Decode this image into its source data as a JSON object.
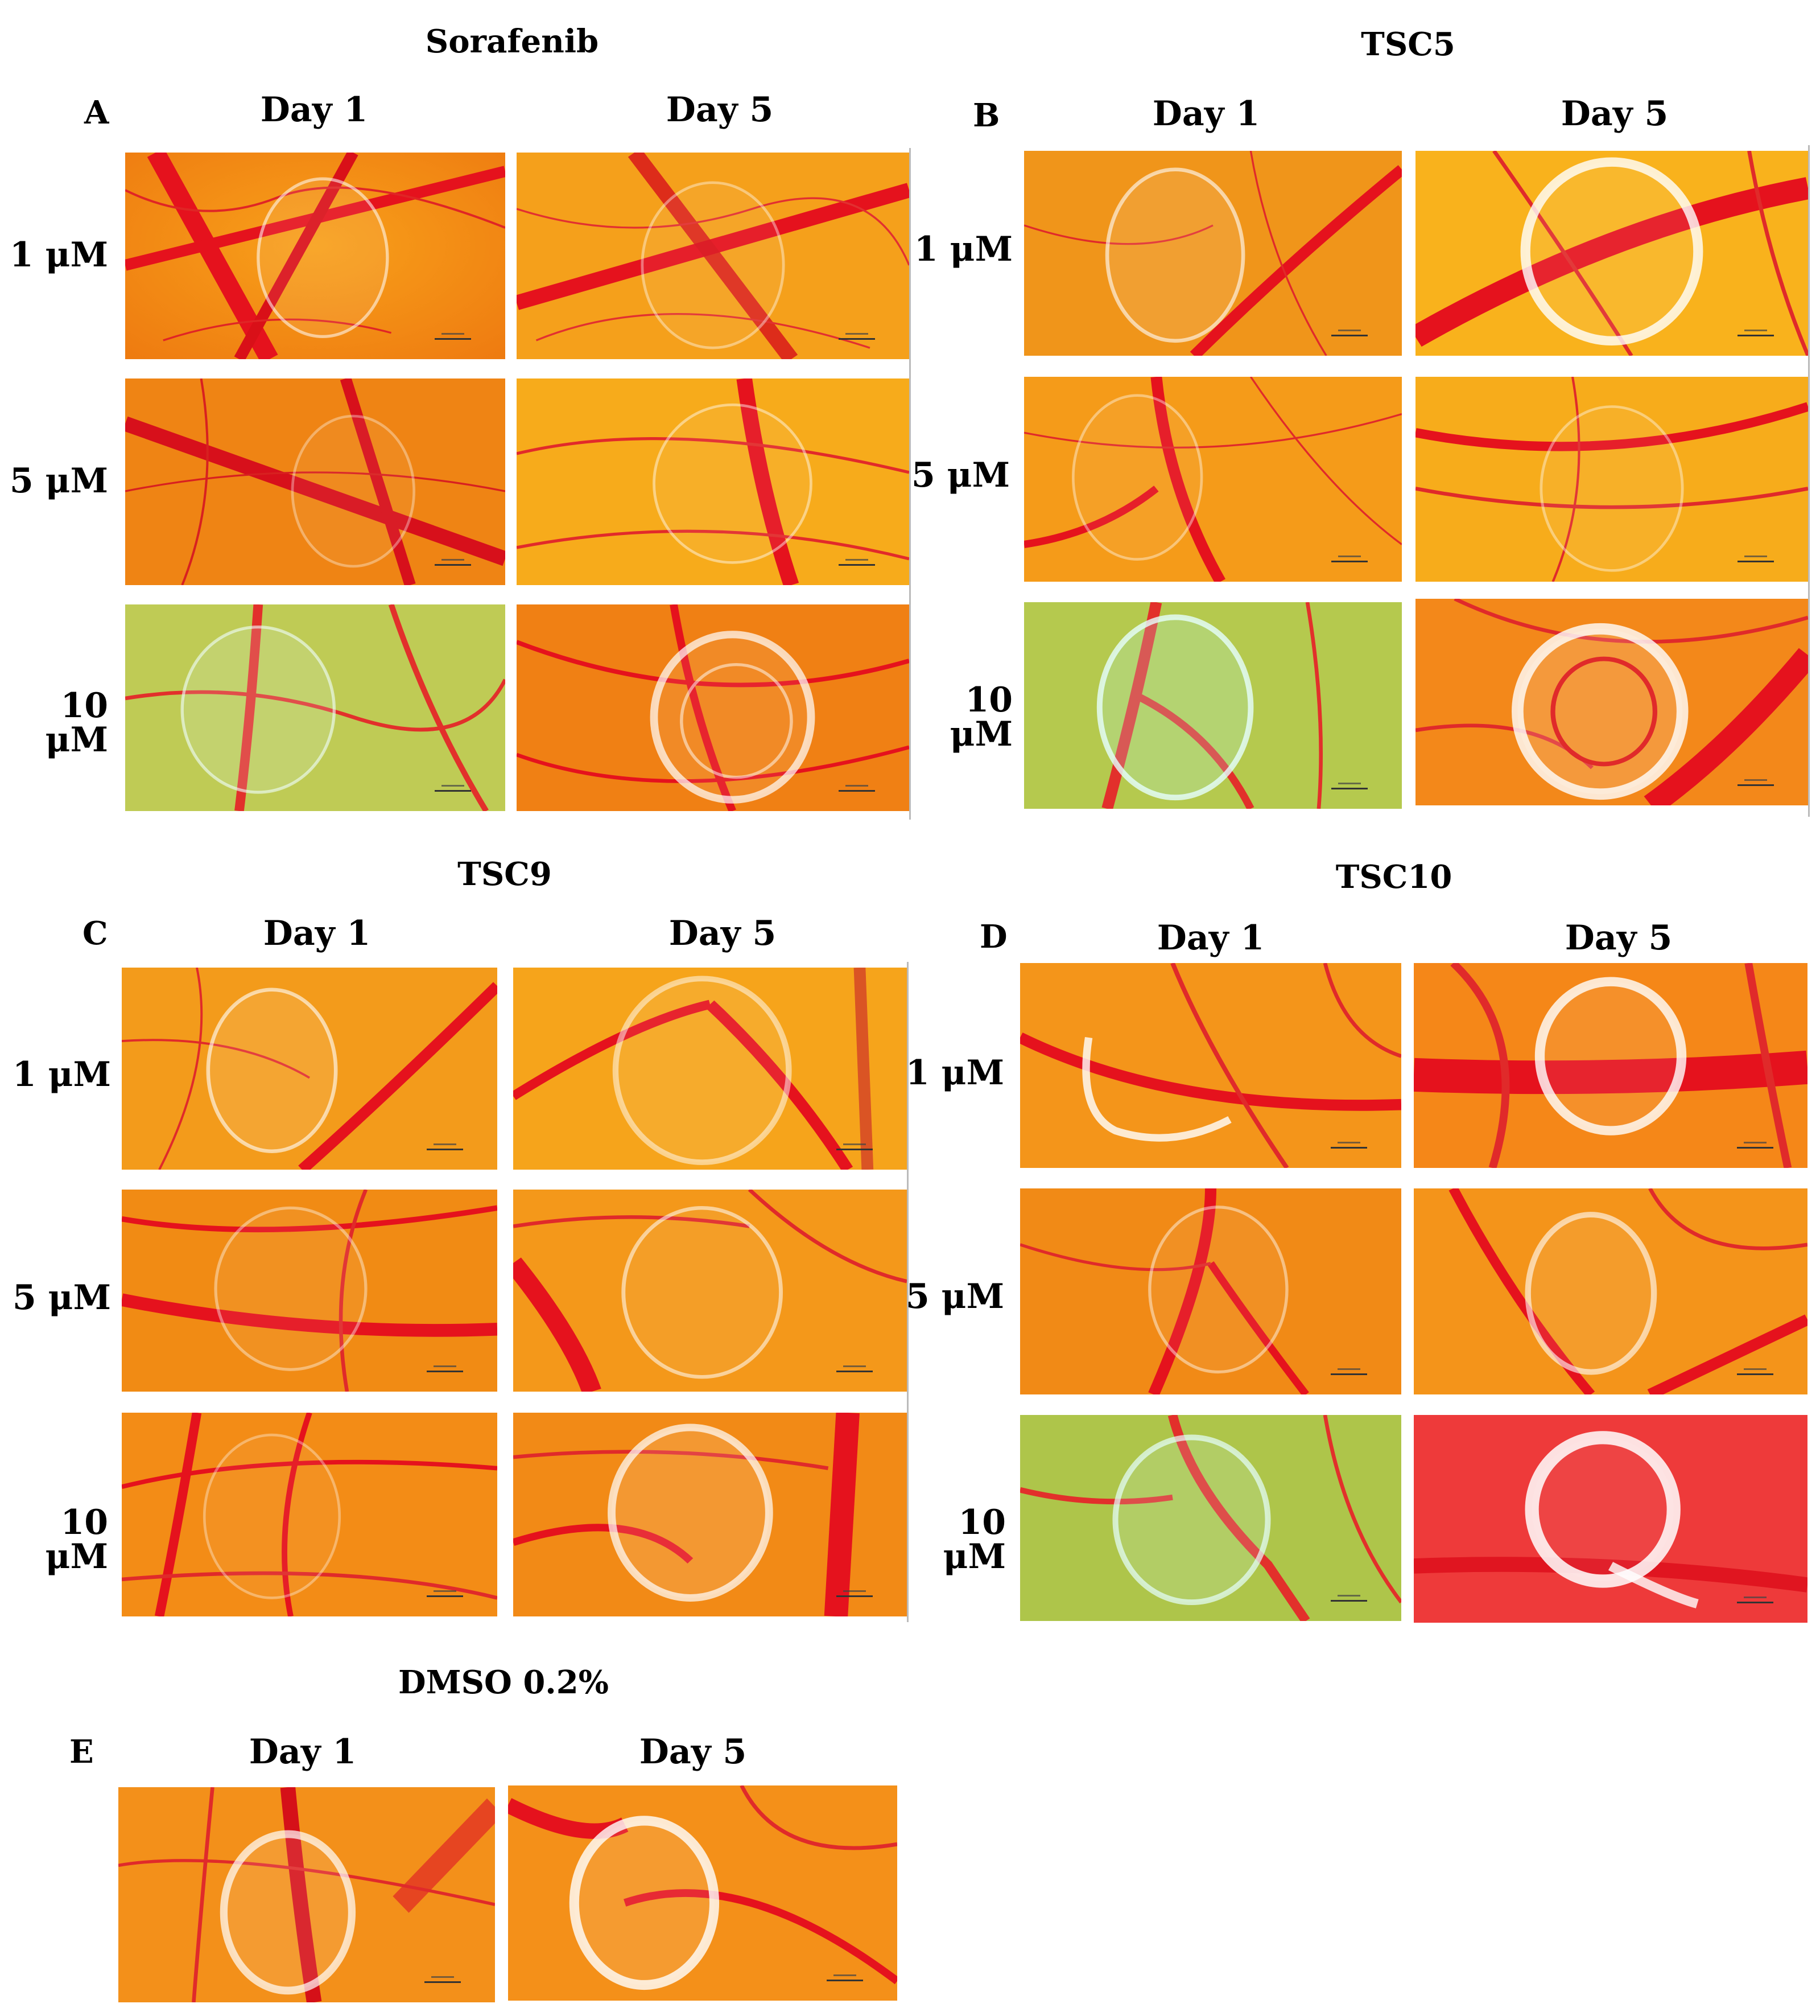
{
  "panels": [
    {
      "id": "A",
      "title": "Sorafenib",
      "day1": "Day 1",
      "day5": "Day 5",
      "doses": [
        "1 μM",
        "5 μM",
        "10 μM"
      ]
    },
    {
      "id": "B",
      "title": "TSC5",
      "day1": "Day 1",
      "day5": "Day 5",
      "doses": [
        "1 μM",
        "5 μM",
        "10 μM"
      ]
    },
    {
      "id": "C",
      "title": "TSC9",
      "day1": "Day 1",
      "day5": "Day 5",
      "doses": [
        "1 μM",
        "5 μM",
        "10 μM"
      ]
    },
    {
      "id": "D",
      "title": "TSC10",
      "day1": "Day 1",
      "day5": "Day 5",
      "doses": [
        "1 μM",
        "5 μM",
        "10 μM"
      ]
    },
    {
      "id": "E",
      "title": "DMSO 0.2%",
      "day1": "Day 1",
      "day5": "Day 5",
      "doses": []
    }
  ],
  "colors": {
    "membrane_orange": "#f28a12",
    "membrane_yellow": "#f9b21c",
    "vessel_red": "#e8121e",
    "greenish": "#b8c94a",
    "pinkred": "#ee3a3a"
  }
}
